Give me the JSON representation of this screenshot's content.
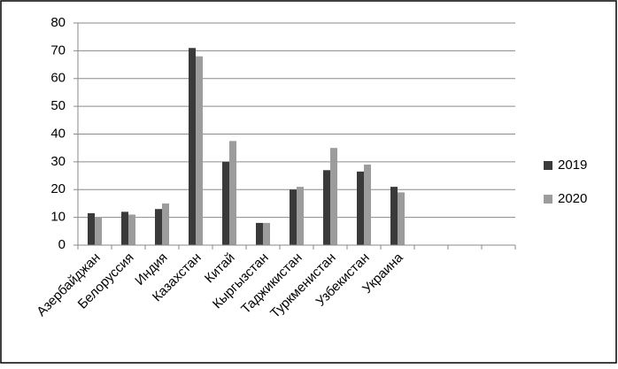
{
  "chart_data": {
    "type": "bar",
    "categories": [
      "Азербайджан",
      "Белоруссия",
      "Индия",
      "Казахстан",
      "Китай",
      "Кыргызстан",
      "Таджикистан",
      "Туркменистан",
      "Узбекистан",
      "Украина",
      null,
      null,
      null
    ],
    "series": [
      {
        "name": "2019",
        "color": "#3a3a3a",
        "values": [
          11.5,
          12,
          13,
          71,
          30,
          8,
          20,
          27,
          26.5,
          21,
          null,
          null,
          null
        ]
      },
      {
        "name": "2020",
        "color": "#9c9c9c",
        "values": [
          10,
          11,
          15,
          68,
          37.5,
          8,
          21,
          35,
          29,
          19,
          null,
          null,
          null
        ]
      }
    ],
    "ylim": [
      0,
      80
    ],
    "yticks": [
      0,
      10,
      20,
      30,
      40,
      50,
      60,
      70,
      80
    ],
    "grid": true,
    "legend": "right"
  }
}
